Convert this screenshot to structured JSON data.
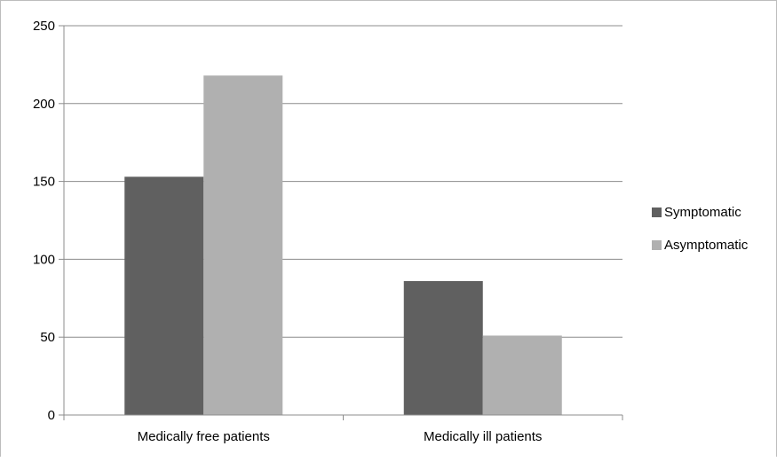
{
  "chart_data": {
    "type": "bar",
    "categories": [
      "Medically free patients",
      "Medically ill patients"
    ],
    "series": [
      {
        "name": "Symptomatic",
        "values": [
          153,
          86
        ],
        "color": "#606060"
      },
      {
        "name": "Asymptomatic",
        "values": [
          218,
          51
        ],
        "color": "#b0b0b0"
      }
    ],
    "title": "",
    "xlabel": "",
    "ylabel": "",
    "ylim": [
      0,
      250
    ],
    "yticks": [
      0,
      50,
      100,
      150,
      200,
      250
    ],
    "grid": true,
    "legend": "right"
  }
}
